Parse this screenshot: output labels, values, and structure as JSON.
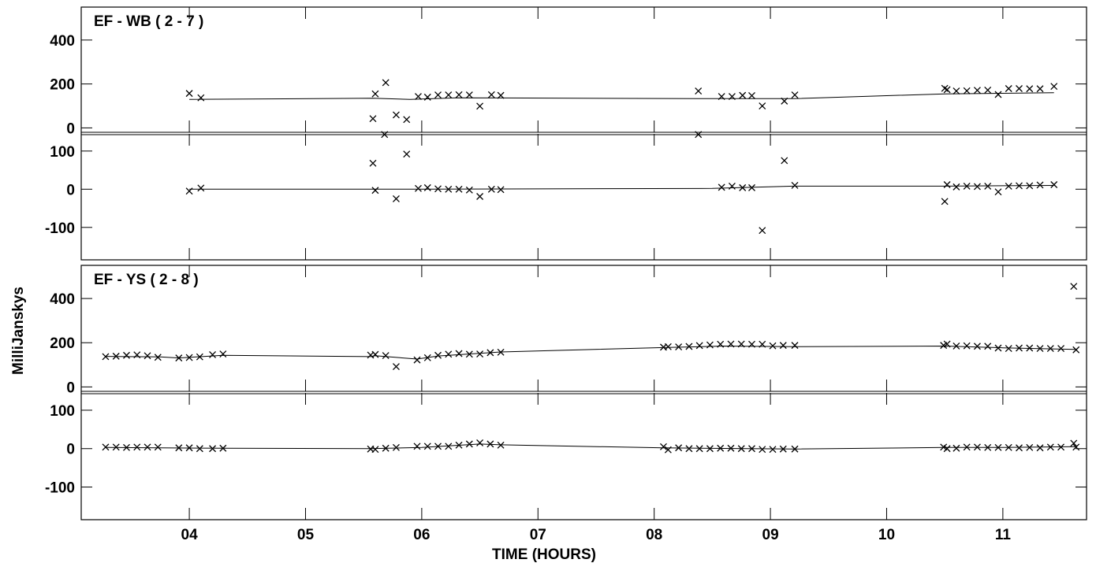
{
  "chart_data": {
    "type": "scatter",
    "xlabel": "TIME (HOURS)",
    "ylabel": "MilliJanskys",
    "x_ticks": [
      "04",
      "05",
      "06",
      "07",
      "08",
      "09",
      "10",
      "11"
    ],
    "xlim": [
      3.07,
      11.72
    ],
    "panels": [
      {
        "title": "EF - WB ( 2 - 7 )",
        "upper": {
          "ylim": [
            -20,
            550
          ],
          "y_ticks": [
            "0",
            "200",
            "400"
          ],
          "points": [
            [
              4.0,
              157
            ],
            [
              4.1,
              137
            ],
            [
              5.58,
              42
            ],
            [
              5.6,
              155
            ],
            [
              5.68,
              -30
            ],
            [
              5.69,
              206
            ],
            [
              5.78,
              59
            ],
            [
              5.87,
              38
            ],
            [
              5.97,
              143
            ],
            [
              6.05,
              140
            ],
            [
              6.14,
              150
            ],
            [
              6.23,
              150
            ],
            [
              6.32,
              151
            ],
            [
              6.41,
              150
            ],
            [
              6.5,
              99
            ],
            [
              6.6,
              151
            ],
            [
              6.68,
              148
            ],
            [
              8.38,
              168
            ],
            [
              8.38,
              -30
            ],
            [
              8.58,
              143
            ],
            [
              8.67,
              143
            ],
            [
              8.76,
              148
            ],
            [
              8.84,
              147
            ],
            [
              8.93,
              100
            ],
            [
              9.12,
              122
            ],
            [
              9.21,
              150
            ],
            [
              10.5,
              180
            ],
            [
              10.52,
              174
            ],
            [
              10.6,
              168
            ],
            [
              10.69,
              169
            ],
            [
              10.78,
              171
            ],
            [
              10.87,
              172
            ],
            [
              10.96,
              152
            ],
            [
              11.05,
              179
            ],
            [
              11.14,
              179
            ],
            [
              11.23,
              178
            ],
            [
              11.32,
              178
            ],
            [
              11.44,
              189
            ]
          ],
          "model": [
            [
              4.0,
              130
            ],
            [
              5.58,
              135
            ],
            [
              5.9,
              130
            ],
            [
              6.3,
              137
            ],
            [
              8.38,
              133
            ],
            [
              9.2,
              133
            ],
            [
              10.5,
              155
            ],
            [
              11.44,
              160
            ]
          ]
        },
        "lower": {
          "ylim": [
            -185,
            145
          ],
          "y_ticks": [
            "-100",
            "0",
            "100"
          ],
          "points": [
            [
              4.0,
              -5
            ],
            [
              4.1,
              3
            ],
            [
              5.58,
              68
            ],
            [
              5.6,
              -3
            ],
            [
              5.78,
              -25
            ],
            [
              5.87,
              92
            ],
            [
              5.97,
              2
            ],
            [
              6.05,
              4
            ],
            [
              6.14,
              1
            ],
            [
              6.23,
              0
            ],
            [
              6.32,
              0
            ],
            [
              6.41,
              -2
            ],
            [
              6.5,
              -19
            ],
            [
              6.6,
              0
            ],
            [
              6.68,
              -1
            ],
            [
              8.58,
              5
            ],
            [
              8.67,
              8
            ],
            [
              8.76,
              4
            ],
            [
              8.84,
              4
            ],
            [
              8.93,
              -108
            ],
            [
              9.12,
              75
            ],
            [
              9.21,
              10
            ],
            [
              10.5,
              -32
            ],
            [
              10.52,
              12
            ],
            [
              10.6,
              6
            ],
            [
              10.69,
              8
            ],
            [
              10.78,
              7
            ],
            [
              10.87,
              8
            ],
            [
              10.96,
              -7
            ],
            [
              11.05,
              8
            ],
            [
              11.14,
              9
            ],
            [
              11.23,
              9
            ],
            [
              11.32,
              11
            ],
            [
              11.44,
              12
            ]
          ],
          "model": [
            [
              4.0,
              0
            ],
            [
              6.0,
              0
            ],
            [
              8.5,
              2
            ],
            [
              9.2,
              8
            ],
            [
              10.5,
              8
            ],
            [
              11.44,
              10
            ]
          ]
        }
      },
      {
        "title": "EF - YS ( 2 - 8 )",
        "upper": {
          "ylim": [
            -20,
            550
          ],
          "y_ticks": [
            "0",
            "200",
            "400"
          ],
          "points": [
            [
              3.28,
              137
            ],
            [
              3.37,
              139
            ],
            [
              3.46,
              143
            ],
            [
              3.55,
              145
            ],
            [
              3.64,
              141
            ],
            [
              3.73,
              134
            ],
            [
              3.91,
              131
            ],
            [
              4.0,
              133
            ],
            [
              4.09,
              136
            ],
            [
              4.2,
              146
            ],
            [
              4.29,
              149
            ],
            [
              5.56,
              144
            ],
            [
              5.6,
              147
            ],
            [
              5.69,
              142
            ],
            [
              5.78,
              92
            ],
            [
              5.96,
              122
            ],
            [
              6.05,
              132
            ],
            [
              6.14,
              143
            ],
            [
              6.23,
              148
            ],
            [
              6.32,
              151
            ],
            [
              6.41,
              148
            ],
            [
              6.5,
              149
            ],
            [
              6.59,
              155
            ],
            [
              6.68,
              157
            ],
            [
              8.08,
              180
            ],
            [
              8.12,
              182
            ],
            [
              8.21,
              181
            ],
            [
              8.3,
              183
            ],
            [
              8.39,
              187
            ],
            [
              8.48,
              190
            ],
            [
              8.57,
              193
            ],
            [
              8.66,
              194
            ],
            [
              8.75,
              194
            ],
            [
              8.84,
              193
            ],
            [
              8.93,
              193
            ],
            [
              9.02,
              186
            ],
            [
              9.11,
              188
            ],
            [
              9.21,
              188
            ],
            [
              10.49,
              188
            ],
            [
              10.52,
              194
            ],
            [
              10.6,
              185
            ],
            [
              10.69,
              186
            ],
            [
              10.78,
              184
            ],
            [
              10.87,
              184
            ],
            [
              10.96,
              176
            ],
            [
              11.05,
              174
            ],
            [
              11.14,
              176
            ],
            [
              11.23,
              176
            ],
            [
              11.32,
              174
            ],
            [
              11.41,
              174
            ],
            [
              11.5,
              174
            ],
            [
              11.61,
              455
            ],
            [
              11.63,
              168
            ]
          ],
          "model": [
            [
              3.28,
              138
            ],
            [
              3.75,
              136
            ],
            [
              3.91,
              131
            ],
            [
              4.29,
              143
            ],
            [
              5.56,
              137
            ],
            [
              5.6,
              141
            ],
            [
              5.96,
              126
            ],
            [
              6.14,
              140
            ],
            [
              6.68,
              158
            ],
            [
              8.08,
              178
            ],
            [
              8.6,
              185
            ],
            [
              9.2,
              182
            ],
            [
              10.5,
              185
            ],
            [
              11.0,
              177
            ],
            [
              11.63,
              170
            ]
          ]
        },
        "lower": {
          "ylim": [
            -185,
            145
          ],
          "y_ticks": [
            "-100",
            "0",
            "100"
          ],
          "points": [
            [
              3.28,
              4
            ],
            [
              3.37,
              4
            ],
            [
              3.46,
              3
            ],
            [
              3.55,
              4
            ],
            [
              3.64,
              4
            ],
            [
              3.73,
              4
            ],
            [
              3.91,
              2
            ],
            [
              4.0,
              2
            ],
            [
              4.09,
              0
            ],
            [
              4.2,
              0
            ],
            [
              4.29,
              1
            ],
            [
              5.56,
              -1
            ],
            [
              5.6,
              -2
            ],
            [
              5.69,
              1
            ],
            [
              5.78,
              3
            ],
            [
              5.96,
              6
            ],
            [
              6.05,
              6
            ],
            [
              6.14,
              6
            ],
            [
              6.23,
              6
            ],
            [
              6.32,
              9
            ],
            [
              6.41,
              12
            ],
            [
              6.5,
              15
            ],
            [
              6.59,
              12
            ],
            [
              6.68,
              9
            ],
            [
              8.08,
              5
            ],
            [
              8.12,
              -3
            ],
            [
              8.21,
              2
            ],
            [
              8.3,
              0
            ],
            [
              8.39,
              0
            ],
            [
              8.48,
              0
            ],
            [
              8.57,
              1
            ],
            [
              8.66,
              1
            ],
            [
              8.75,
              0
            ],
            [
              8.84,
              0
            ],
            [
              8.93,
              -2
            ],
            [
              9.02,
              -2
            ],
            [
              9.11,
              -1
            ],
            [
              9.21,
              -1
            ],
            [
              10.49,
              4
            ],
            [
              10.52,
              0
            ],
            [
              10.6,
              1
            ],
            [
              10.69,
              4
            ],
            [
              10.78,
              4
            ],
            [
              10.87,
              3
            ],
            [
              10.96,
              3
            ],
            [
              11.05,
              3
            ],
            [
              11.14,
              2
            ],
            [
              11.23,
              3
            ],
            [
              11.32,
              2
            ],
            [
              11.41,
              4
            ],
            [
              11.5,
              4
            ],
            [
              11.61,
              14
            ],
            [
              11.63,
              4
            ]
          ],
          "model": [
            [
              3.28,
              3
            ],
            [
              4.29,
              1
            ],
            [
              5.56,
              0
            ],
            [
              6.0,
              3
            ],
            [
              6.5,
              12
            ],
            [
              6.68,
              10
            ],
            [
              8.08,
              2
            ],
            [
              9.21,
              -1
            ],
            [
              10.5,
              3
            ],
            [
              11.0,
              3
            ],
            [
              11.63,
              5
            ]
          ]
        }
      }
    ]
  }
}
